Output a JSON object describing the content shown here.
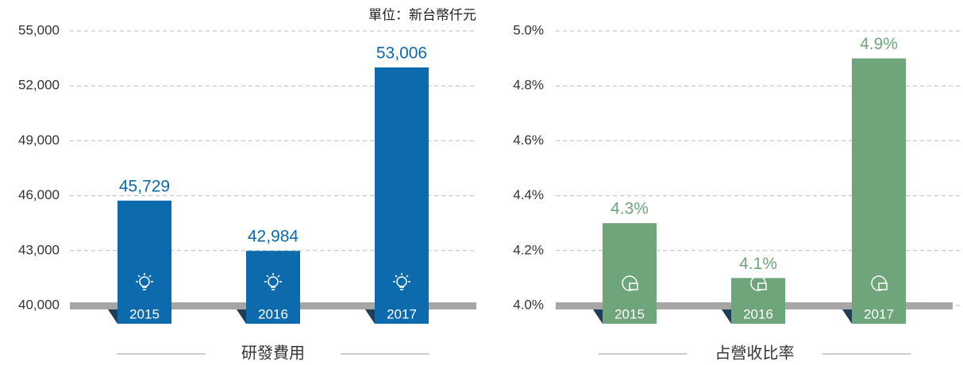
{
  "chart_data": [
    {
      "type": "bar",
      "title": "研發費用",
      "note": "單位：新台幣仟元",
      "categories": [
        "2015",
        "2016",
        "2017"
      ],
      "values": [
        45729,
        42984,
        53006
      ],
      "value_labels": [
        "45,729",
        "42,984",
        "53,006"
      ],
      "color": "#0d6aad",
      "ylim": [
        40000,
        55000
      ],
      "yticks": [
        {
          "value": 40000,
          "label": "40,000"
        },
        {
          "value": 43000,
          "label": "43,000"
        },
        {
          "value": 46000,
          "label": "46,000"
        },
        {
          "value": 49000,
          "label": "49,000"
        },
        {
          "value": 52000,
          "label": "52,000"
        },
        {
          "value": 55000,
          "label": "55,000"
        }
      ],
      "grid": true
    },
    {
      "type": "bar",
      "title": "占營收比率",
      "categories": [
        "2015",
        "2016",
        "2017"
      ],
      "values": [
        4.3,
        4.1,
        4.9
      ],
      "value_labels": [
        "4.3%",
        "4.1%",
        "4.9%"
      ],
      "color": "#6fa57a",
      "ylim": [
        4.0,
        5.0
      ],
      "yticks": [
        {
          "value": 4.0,
          "label": "4.0%"
        },
        {
          "value": 4.2,
          "label": "4.2%"
        },
        {
          "value": 4.4,
          "label": "4.4%"
        },
        {
          "value": 4.6,
          "label": "4.6%"
        },
        {
          "value": 4.8,
          "label": "4.8%"
        },
        {
          "value": 5.0,
          "label": "5.0%"
        }
      ],
      "grid": true
    }
  ]
}
